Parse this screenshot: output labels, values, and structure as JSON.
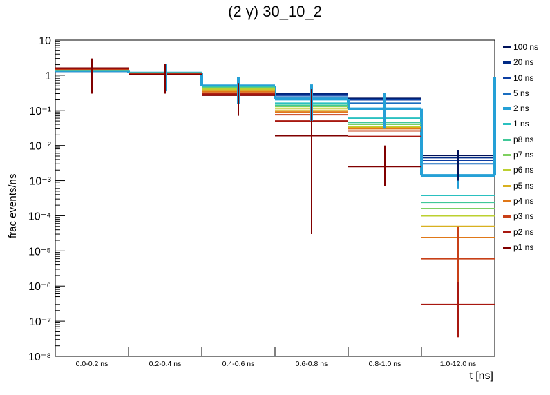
{
  "title": "(2 γ) 30_10_2",
  "chart_data": {
    "type": "line",
    "title": "(2 γ) 30_10_2",
    "xlabel": "t [ns]",
    "ylabel": "frac events/ns",
    "yscale": "log",
    "ylim": [
      1e-08,
      10
    ],
    "ytick_labels": [
      "10⁻⁸",
      "10⁻⁷",
      "10⁻⁶",
      "10⁻⁵",
      "10⁻⁴",
      "10⁻³",
      "10⁻²",
      "10⁻¹",
      "1",
      "10"
    ],
    "categories": [
      "0.0-0.2 ns",
      "0.2-0.4 ns",
      "0.4-0.6 ns",
      "0.6-0.8 ns",
      "0.8-1.0 ns",
      "1.0-12.0 ns"
    ],
    "legend_position": "right",
    "series": [
      {
        "name": "100 ns",
        "color": "#00125a",
        "values": [
          1.3,
          1.1,
          0.45,
          0.3,
          0.22,
          0.0052
        ]
      },
      {
        "name": "20 ns",
        "color": "#002a85",
        "values": [
          1.3,
          1.1,
          0.45,
          0.29,
          0.21,
          0.0045
        ]
      },
      {
        "name": "10 ns",
        "color": "#0d3ea2",
        "values": [
          1.3,
          1.1,
          0.45,
          0.27,
          0.2,
          0.0038
        ]
      },
      {
        "name": "5 ns",
        "color": "#1a6ec0",
        "values": [
          1.3,
          1.1,
          0.46,
          0.24,
          0.16,
          0.003
        ]
      },
      {
        "name": "2 ns",
        "color": "#25a0d6",
        "highlight": true,
        "values": [
          1.35,
          1.15,
          0.5,
          0.21,
          0.11,
          0.0014
        ]
      },
      {
        "name": "1 ns",
        "color": "#2ac0c0",
        "values": [
          1.4,
          1.15,
          0.48,
          0.16,
          0.06,
          0.00038
        ]
      },
      {
        "name": "p8 ns",
        "color": "#40c898",
        "values": [
          1.4,
          1.15,
          0.45,
          0.14,
          0.045,
          0.00024
        ]
      },
      {
        "name": "p7 ns",
        "color": "#7ed060",
        "values": [
          1.4,
          1.15,
          0.43,
          0.13,
          0.04,
          0.00016
        ]
      },
      {
        "name": "p6 ns",
        "color": "#bcd030",
        "values": [
          1.45,
          1.1,
          0.4,
          0.115,
          0.035,
          0.0001
        ]
      },
      {
        "name": "p5 ns",
        "color": "#d8b020",
        "values": [
          1.45,
          1.1,
          0.37,
          0.1,
          0.032,
          5e-05
        ]
      },
      {
        "name": "p4 ns",
        "color": "#e07818",
        "values": [
          1.5,
          1.1,
          0.34,
          0.09,
          0.03,
          2.4e-05
        ]
      },
      {
        "name": "p3 ns",
        "color": "#c84018",
        "values": [
          1.5,
          1.1,
          0.31,
          0.075,
          0.026,
          6e-06
        ]
      },
      {
        "name": "p2 ns",
        "color": "#a81810",
        "values": [
          1.55,
          1.05,
          0.29,
          0.05,
          0.018,
          3e-07
        ]
      },
      {
        "name": "p1 ns",
        "color": "#800000",
        "values": [
          1.6,
          1.05,
          0.27,
          0.019,
          0.0025,
          null
        ]
      }
    ],
    "errors_2ns": [
      [
        0.7,
        2.3
      ],
      [
        0.35,
        2.1
      ],
      [
        0.15,
        0.9
      ],
      [
        0.05,
        0.55
      ],
      [
        0.03,
        0.32
      ],
      [
        0.0006,
        0.0045
      ]
    ]
  }
}
